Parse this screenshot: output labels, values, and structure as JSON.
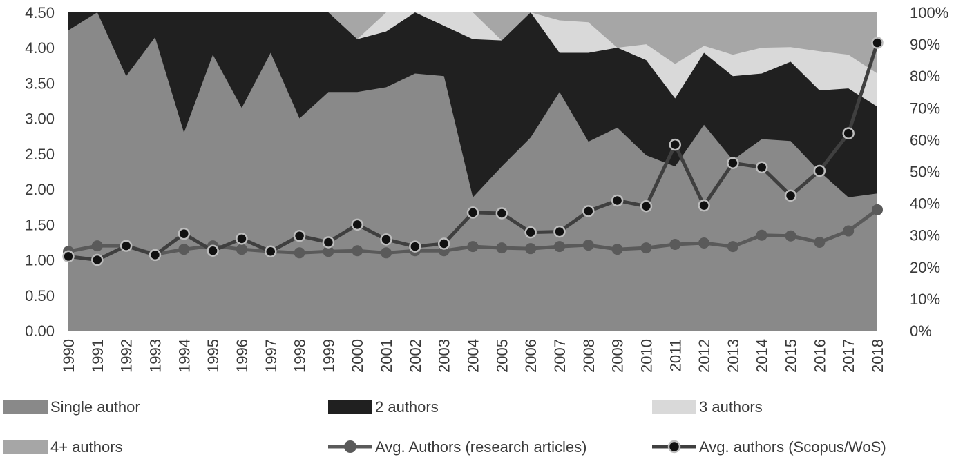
{
  "chart_data": {
    "type": "area",
    "categories": [
      "1990",
      "1991",
      "1992",
      "1993",
      "1994",
      "1995",
      "1996",
      "1997",
      "1998",
      "1999",
      "2000",
      "2001",
      "2002",
      "2003",
      "2004",
      "2005",
      "2006",
      "2007",
      "2008",
      "2009",
      "2010",
      "2011",
      "2012",
      "2013",
      "2014",
      "2015",
      "2016",
      "2017",
      "2018"
    ],
    "area_series_cumulative_percent": [
      {
        "name": "Single author",
        "color": "#898989",
        "top": [
          94.4,
          100,
          80.0,
          92.2,
          62.2,
          86.7,
          70.0,
          87.3,
          66.7,
          75.0,
          75.0,
          76.5,
          80.8,
          80.0,
          41.9,
          51.6,
          60.7,
          75.0,
          59.4,
          63.8,
          55.1,
          51.6,
          64.7,
          53.6,
          60.2,
          59.6,
          50.0,
          41.9,
          43.1
        ]
      },
      {
        "name": "2 authors",
        "color": "#202020",
        "top": [
          100,
          100,
          100,
          100,
          100,
          100,
          100,
          100,
          100,
          100,
          91.6,
          94.0,
          100,
          95.8,
          91.6,
          91.2,
          100,
          87.3,
          87.3,
          88.9,
          85.0,
          73.0,
          87.3,
          80.0,
          80.8,
          84.5,
          75.5,
          76.1,
          70.4
        ]
      },
      {
        "name": "3 authors",
        "color": "#d9d9d9",
        "top": [
          100,
          100,
          100,
          100,
          100,
          100,
          100,
          100,
          100,
          100,
          91.6,
          100,
          100,
          100,
          100,
          91.2,
          100,
          97.5,
          96.9,
          88.9,
          90.0,
          83.8,
          89.5,
          86.7,
          88.9,
          89.1,
          87.8,
          86.7,
          80.8
        ]
      },
      {
        "name": "4+ authors",
        "color": "#a6a6a6",
        "top": [
          100,
          100,
          100,
          100,
          100,
          100,
          100,
          100,
          100,
          100,
          100,
          100,
          100,
          100,
          100,
          100,
          100,
          100,
          100,
          100,
          100,
          100,
          100,
          100,
          100,
          100,
          100,
          100,
          100
        ]
      }
    ],
    "line_series": [
      {
        "name": "Avg. Authors (research articles)",
        "color": "#5a5a5a",
        "values": [
          1.12,
          1.2,
          1.2,
          1.08,
          1.15,
          1.2,
          1.15,
          1.12,
          1.1,
          1.12,
          1.13,
          1.1,
          1.13,
          1.13,
          1.19,
          1.17,
          1.16,
          1.19,
          1.21,
          1.15,
          1.17,
          1.22,
          1.24,
          1.19,
          1.35,
          1.34,
          1.25,
          1.41,
          1.71
        ]
      },
      {
        "name": "Avg. authors (Scopus/WoS)",
        "color": "#3f3f3f",
        "values": [
          1.05,
          1.0,
          1.2,
          1.07,
          1.37,
          1.13,
          1.3,
          1.12,
          1.34,
          1.25,
          1.5,
          1.29,
          1.19,
          1.23,
          1.67,
          1.66,
          1.39,
          1.4,
          1.69,
          1.84,
          1.76,
          2.63,
          1.77,
          2.37,
          2.31,
          1.91,
          2.26,
          2.79,
          4.07
        ]
      }
    ],
    "y_left": {
      "min": 0,
      "max": 4.5,
      "ticks": [
        "0.00",
        "0.50",
        "1.00",
        "1.50",
        "2.00",
        "2.50",
        "3.00",
        "3.50",
        "4.00",
        "4.50"
      ]
    },
    "y_right": {
      "min": 0,
      "max": 100,
      "ticks": [
        "0%",
        "10%",
        "20%",
        "30%",
        "40%",
        "50%",
        "60%",
        "70%",
        "80%",
        "90%",
        "100%"
      ]
    },
    "xlabel": "",
    "ylabel": "",
    "title": "",
    "grid": false,
    "legend_position": "bottom"
  },
  "legend": [
    {
      "label": "Single author",
      "kind": "area",
      "color": "#898989"
    },
    {
      "label": "2 authors",
      "kind": "area",
      "color": "#202020"
    },
    {
      "label": "3 authors",
      "kind": "area",
      "color": "#d9d9d9"
    },
    {
      "label": "4+ authors",
      "kind": "area",
      "color": "#a6a6a6"
    },
    {
      "label": "Avg. Authors (research articles)",
      "kind": "line",
      "color": "#5a5a5a"
    },
    {
      "label": "Avg. authors (Scopus/WoS)",
      "kind": "line-dark",
      "color": "#3f3f3f"
    }
  ]
}
